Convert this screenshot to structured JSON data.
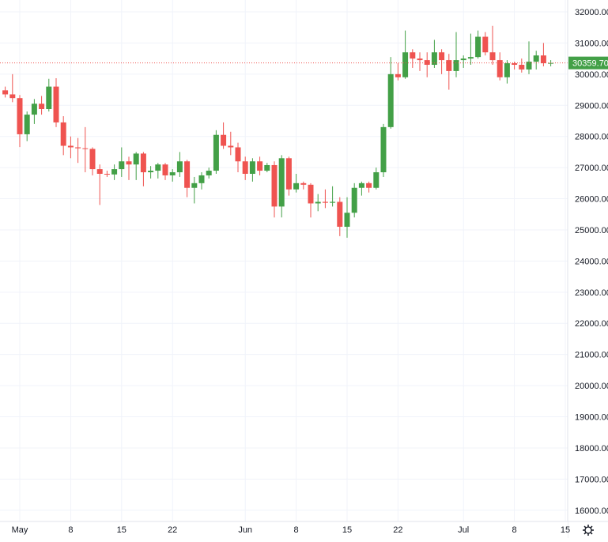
{
  "chart_data": {
    "type": "candlestick",
    "categories": [
      null,
      null,
      "May",
      null,
      null,
      null,
      null,
      null,
      null,
      "8",
      null,
      null,
      null,
      null,
      null,
      null,
      "15",
      null,
      null,
      null,
      null,
      null,
      null,
      "22",
      null,
      null,
      null,
      null,
      null,
      null,
      null,
      null,
      null,
      "Jun",
      null,
      null,
      null,
      null,
      null,
      null,
      "8",
      null,
      null,
      null,
      null,
      null,
      null,
      "15",
      null,
      null,
      null,
      null,
      null,
      null,
      "22",
      null,
      null,
      null,
      null,
      null,
      null,
      null,
      null,
      "Jul",
      null,
      null,
      null,
      null,
      null,
      null,
      "8",
      null,
      null,
      null,
      null,
      null,
      null,
      "15"
    ],
    "open": [
      29480,
      29350,
      29230,
      28070,
      28700,
      29050,
      28880,
      29600,
      28450,
      27700,
      27650,
      27620,
      27600,
      26950,
      26800,
      26780,
      26950,
      27200,
      27100,
      27450,
      26850,
      26900,
      27100,
      26750,
      26850,
      27200,
      26350,
      26500,
      26750,
      26900,
      28050,
      27700,
      27650,
      27200,
      26800,
      27200,
      26900,
      27080,
      25750,
      27300,
      26300,
      26500,
      26450,
      25850,
      25900,
      25870,
      25900,
      25100,
      25550,
      26350,
      26500,
      26350,
      26850,
      28300,
      30000,
      29900,
      30700,
      30500,
      30450,
      30300,
      30700,
      30450,
      30100,
      30450,
      30500,
      30550,
      31200,
      30700,
      30450,
      29900,
      30350,
      30300,
      30150,
      30400,
      30600,
      30350,
      null,
      null
    ],
    "high": [
      29600,
      30000,
      29330,
      28800,
      29200,
      29300,
      29850,
      29870,
      28650,
      28000,
      27950,
      28300,
      27650,
      27100,
      26900,
      27100,
      27650,
      27350,
      27500,
      27500,
      27050,
      27150,
      27150,
      26950,
      27500,
      27250,
      26700,
      26850,
      27000,
      28200,
      28450,
      28150,
      27800,
      27350,
      27300,
      27350,
      27150,
      27200,
      27400,
      27350,
      26800,
      26550,
      26500,
      26150,
      26300,
      26400,
      26050,
      26050,
      26500,
      26550,
      26550,
      27000,
      28400,
      30550,
      30350,
      31400,
      30800,
      30700,
      30700,
      31100,
      30800,
      30650,
      31350,
      30600,
      31300,
      31400,
      31350,
      31550,
      30700,
      30450,
      30400,
      30500,
      31050,
      30750,
      31000,
      30450,
      null,
      null
    ],
    "low": [
      29250,
      29100,
      27660,
      27850,
      28400,
      28700,
      28800,
      28300,
      27400,
      27300,
      27150,
      26850,
      26750,
      25800,
      26700,
      26600,
      26700,
      26600,
      26600,
      26400,
      26650,
      26650,
      26600,
      26550,
      26700,
      26050,
      25850,
      26300,
      26650,
      26800,
      27600,
      27400,
      26850,
      26600,
      26550,
      26750,
      26850,
      25400,
      25400,
      26100,
      26200,
      26300,
      25400,
      25600,
      25700,
      25750,
      24800,
      24750,
      25400,
      26100,
      26200,
      26300,
      26700,
      28250,
      29800,
      29850,
      30200,
      30100,
      29900,
      30200,
      30000,
      29500,
      29900,
      30200,
      30300,
      30500,
      30600,
      30300,
      29800,
      29700,
      30150,
      30050,
      30000,
      30150,
      30250,
      30250,
      null,
      null
    ],
    "close": [
      29350,
      29230,
      28070,
      28700,
      29050,
      28880,
      29600,
      28450,
      27700,
      27650,
      27620,
      27600,
      26950,
      26800,
      26780,
      26950,
      27200,
      27100,
      27450,
      26850,
      26900,
      27100,
      26750,
      26850,
      27200,
      26350,
      26500,
      26750,
      26900,
      28050,
      27700,
      27650,
      27200,
      26800,
      27200,
      26900,
      27080,
      25750,
      27300,
      26300,
      26500,
      26450,
      25850,
      25900,
      25870,
      25900,
      25100,
      25550,
      26350,
      26500,
      26350,
      26850,
      28300,
      30000,
      29900,
      30700,
      30500,
      30450,
      30300,
      30700,
      30450,
      30100,
      30450,
      30500,
      30550,
      31200,
      30700,
      30450,
      29900,
      30350,
      30300,
      30150,
      30400,
      30600,
      30350,
      30359.7,
      null,
      null
    ],
    "up_color": "#43a047",
    "down_color": "#ef5350",
    "last_price": {
      "value": 30359.7,
      "label": "30359.70"
    },
    "ylim": [
      15640,
      32380
    ],
    "yticks": [
      {
        "value": 16000,
        "label": "16000.00"
      },
      {
        "value": 17000,
        "label": "17000.00"
      },
      {
        "value": 18000,
        "label": "18000.00"
      },
      {
        "value": 19000,
        "label": "19000.00"
      },
      {
        "value": 20000,
        "label": "20000.00"
      },
      {
        "value": 21000,
        "label": "21000.00"
      },
      {
        "value": 22000,
        "label": "22000.00"
      },
      {
        "value": 23000,
        "label": "23000.00"
      },
      {
        "value": 24000,
        "label": "24000.00"
      },
      {
        "value": 25000,
        "label": "25000.00"
      },
      {
        "value": 26000,
        "label": "26000.00"
      },
      {
        "value": 27000,
        "label": "27000.00"
      },
      {
        "value": 28000,
        "label": "28000.00"
      },
      {
        "value": 29000,
        "label": "29000.00"
      },
      {
        "value": 30000,
        "label": "30000.00"
      },
      {
        "value": 31000,
        "label": "31000.00"
      },
      {
        "value": 32000,
        "label": "32000.00"
      }
    ],
    "grid": true
  }
}
